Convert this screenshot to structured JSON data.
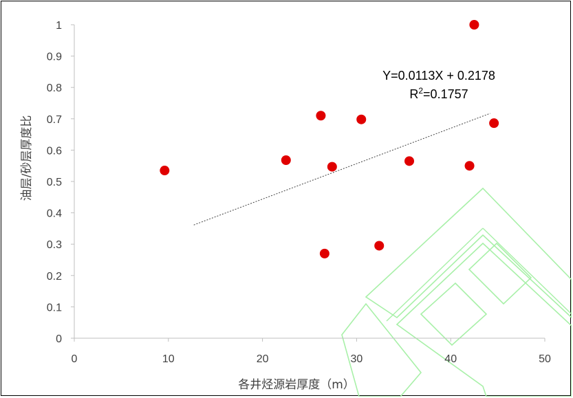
{
  "chart_data": {
    "type": "scatter",
    "title": "",
    "xlabel": "各井烃源岩厚度（m）",
    "ylabel": "油层/砂层厚度比",
    "xlim": [
      0,
      50
    ],
    "ylim": [
      0,
      1
    ],
    "x_ticks": [
      "0",
      "10",
      "20",
      "30",
      "40",
      "50"
    ],
    "y_ticks": [
      "0",
      "0.1",
      "0.2",
      "0.3",
      "0.4",
      "0.5",
      "0.6",
      "0.7",
      "0.8",
      "0.9",
      "1"
    ],
    "grid": false,
    "points": [
      {
        "x": 9.6,
        "y": 0.535
      },
      {
        "x": 22.5,
        "y": 0.568
      },
      {
        "x": 26.2,
        "y": 0.71
      },
      {
        "x": 26.6,
        "y": 0.27
      },
      {
        "x": 27.4,
        "y": 0.547
      },
      {
        "x": 30.5,
        "y": 0.698
      },
      {
        "x": 32.4,
        "y": 0.295
      },
      {
        "x": 35.6,
        "y": 0.565
      },
      {
        "x": 42.0,
        "y": 0.55
      },
      {
        "x": 42.5,
        "y": 1.0
      },
      {
        "x": 44.6,
        "y": 0.686
      }
    ],
    "point_color": "#e00000",
    "trendline": {
      "type": "linear",
      "slope": 0.0113,
      "intercept": 0.2178,
      "x_start": 12.7,
      "x_end": 44.2,
      "equation": "Y=0.0113X + 0.2178",
      "r2_prefix": "R",
      "r2_sup": "2",
      "r2_value": "=0.1757",
      "color": "#404040"
    },
    "watermark_color": "#a8f0a8"
  }
}
